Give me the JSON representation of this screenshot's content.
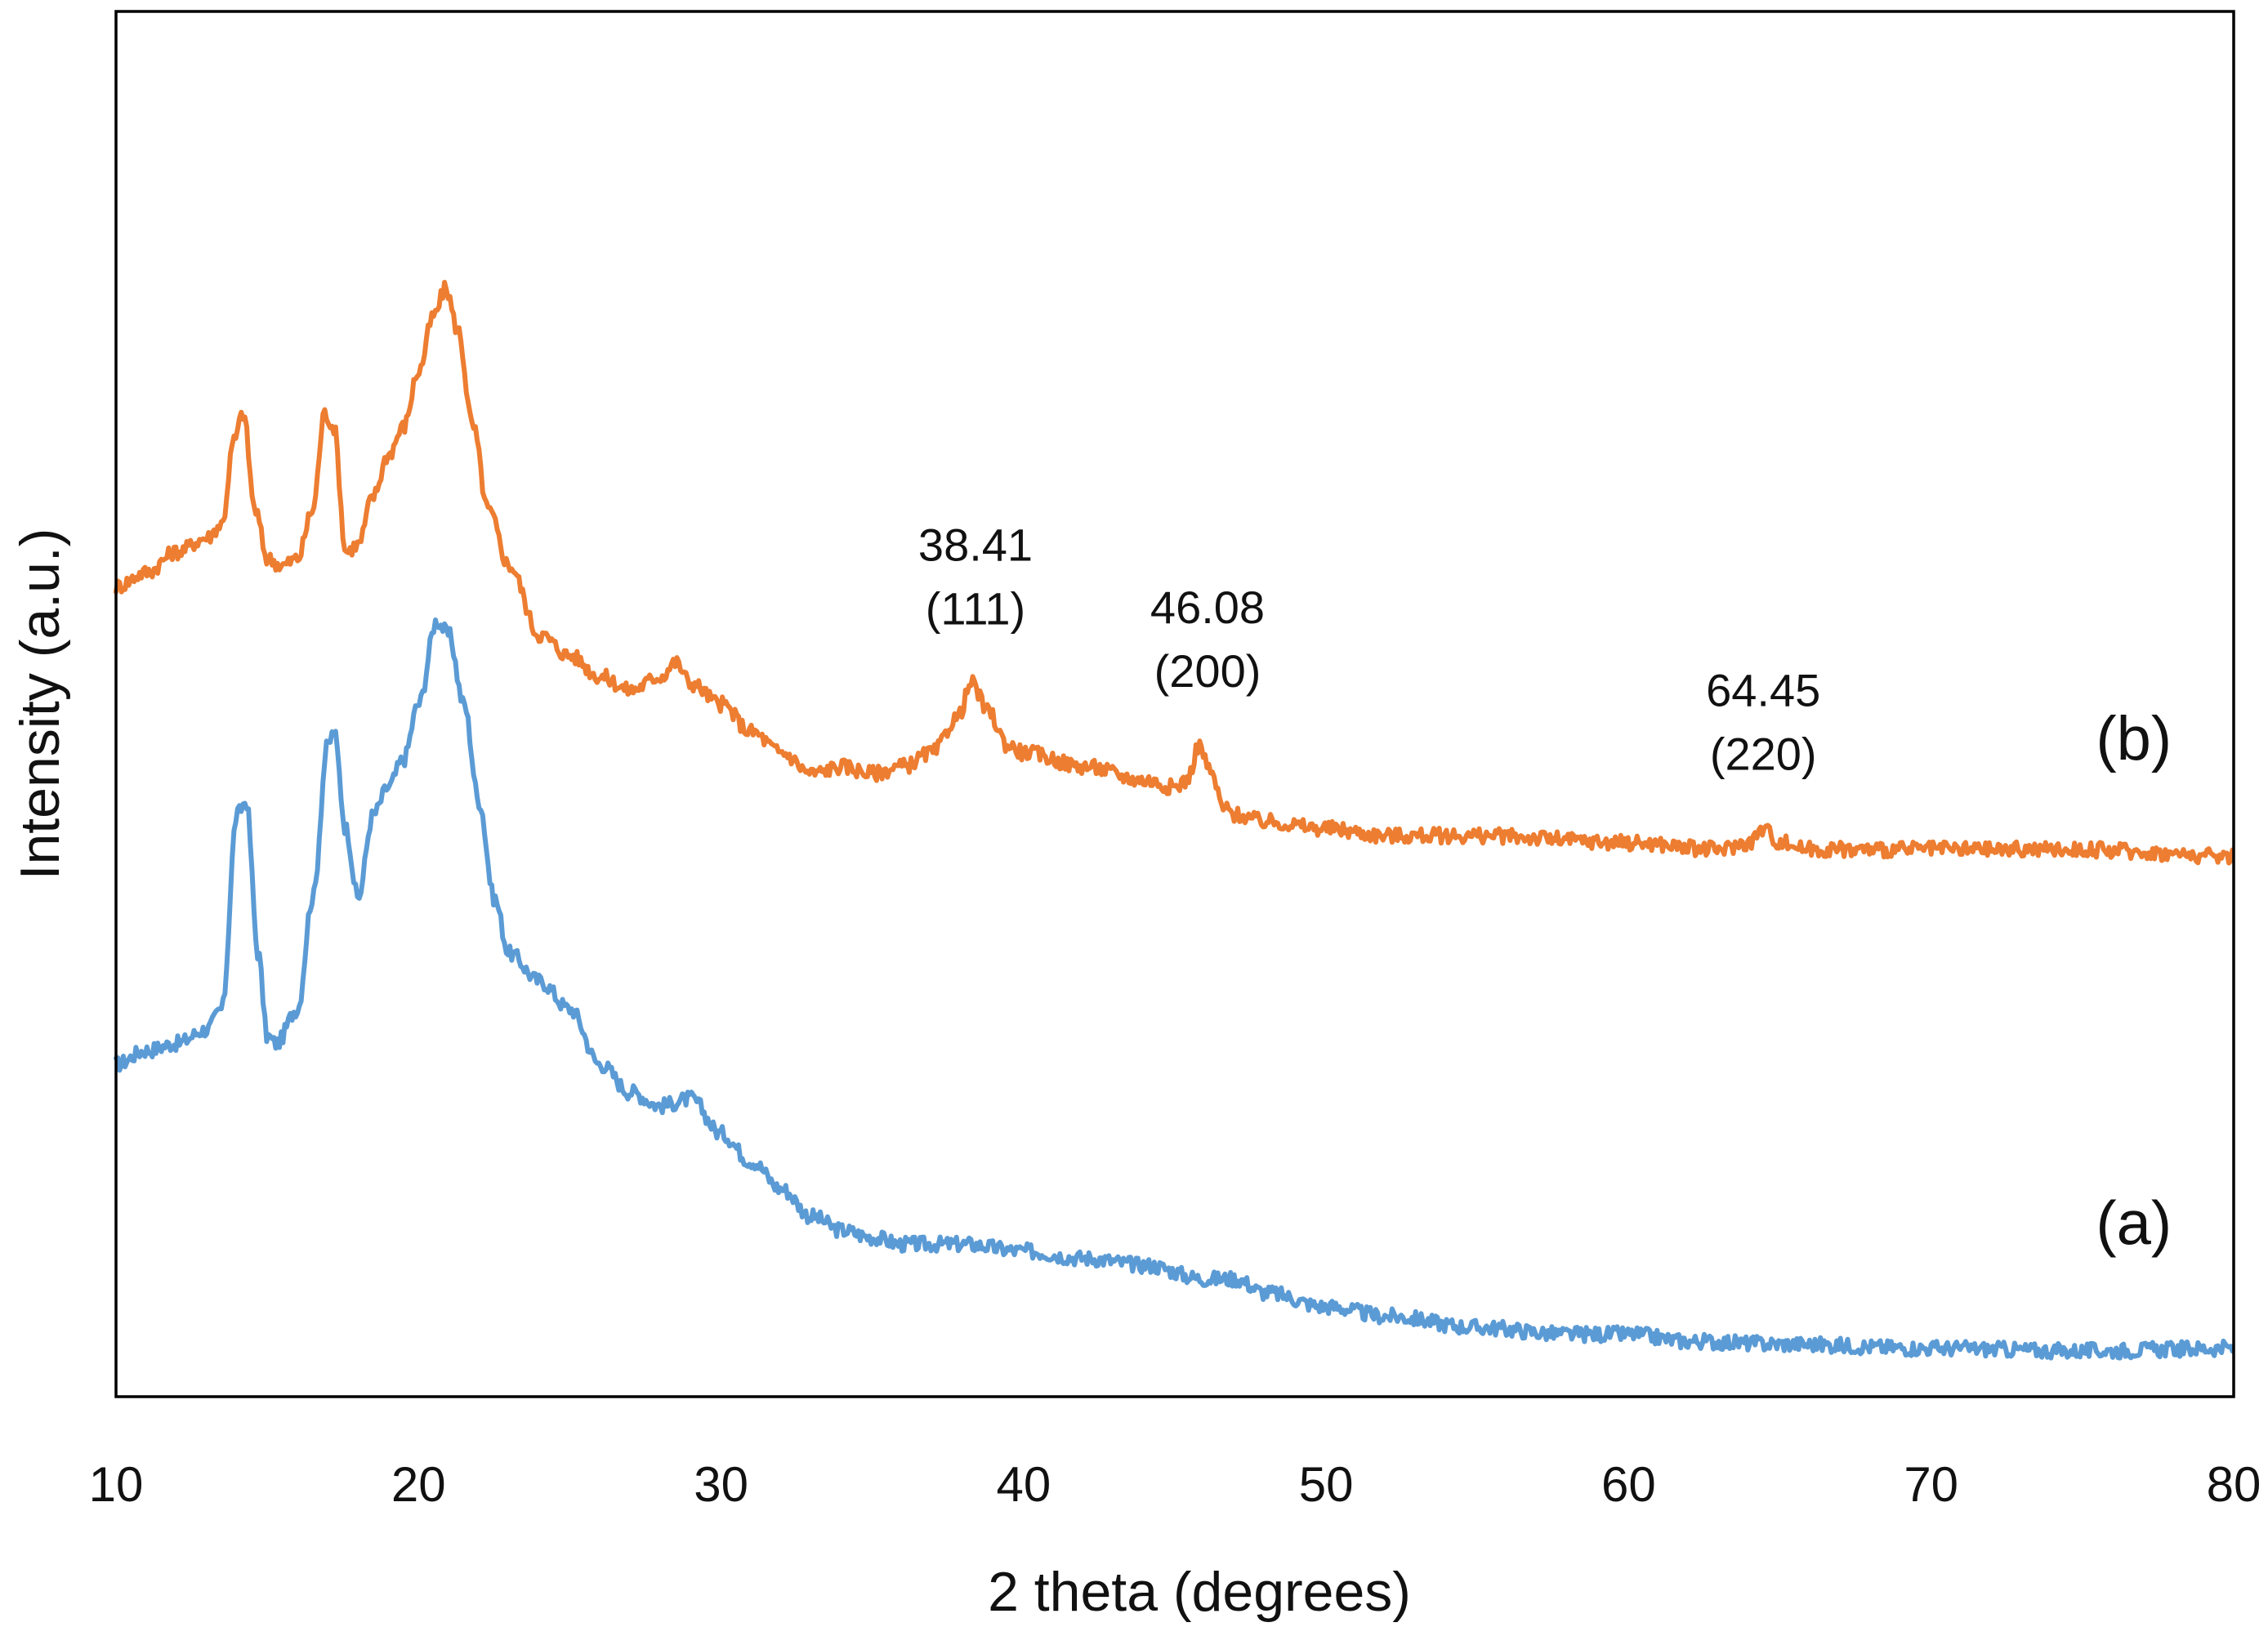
{
  "chart_data": {
    "type": "line",
    "title": "",
    "xlabel": "2 theta (degrees)",
    "ylabel": "Intensity (a.u.)",
    "xlim": [
      10,
      80
    ],
    "ylim": [
      0,
      100
    ],
    "y_axis_ticks_shown": false,
    "grid": false,
    "legend": "none",
    "x_ticks": [
      10,
      20,
      30,
      40,
      50,
      60,
      70,
      80
    ],
    "x_tick_labels": [
      "10",
      "20",
      "30",
      "40",
      "50",
      "60",
      "70",
      "80"
    ],
    "series": [
      {
        "name": "(a)",
        "label": "(a)",
        "color": "#5b9bd5",
        "x": [
          10,
          11,
          12,
          13,
          13.5,
          14.0,
          14.3,
          14.7,
          15.0,
          15.3,
          16.0,
          16.5,
          17.0,
          17.2,
          17.6,
          18.0,
          18.5,
          19.0,
          19.5,
          20.0,
          20.6,
          21.0,
          21.5,
          22.0,
          22.5,
          23.0,
          24.0,
          25.0,
          26.0,
          27.0,
          28.0,
          29.0,
          30.0,
          31.0,
          32.0,
          33.0,
          34.0,
          35.0,
          36.0,
          37.0,
          38.0,
          40.0,
          42.0,
          44.0,
          46.0,
          47.0,
          48.0,
          50.0,
          52.0,
          55.0,
          58.0,
          60.0,
          62.0,
          65.0,
          70.0,
          75.0,
          80.0
        ],
        "y": [
          24.0,
          25.0,
          25.5,
          26.5,
          28.0,
          42.0,
          43.0,
          32.0,
          26.0,
          25.5,
          28.0,
          36.0,
          47.0,
          48.0,
          41.0,
          36.0,
          42.0,
          44.0,
          46.0,
          50.0,
          56.0,
          55.0,
          50.0,
          43.0,
          36.0,
          32.0,
          30.0,
          28.0,
          24.0,
          22.0,
          21.0,
          21.5,
          19.0,
          17.0,
          15.0,
          13.0,
          12.0,
          11.5,
          11.0,
          11.0,
          11.0,
          10.5,
          10.0,
          9.5,
          8.5,
          8.5,
          7.5,
          6.5,
          5.8,
          5.0,
          4.5,
          4.5,
          4.0,
          3.8,
          3.5,
          3.3,
          3.5
        ]
      },
      {
        "name": "(b)",
        "label": "(b)",
        "color": "#ed7d31",
        "x": [
          10,
          11,
          12,
          13,
          13.5,
          13.9,
          14.2,
          14.6,
          15.0,
          15.5,
          16.0,
          16.5,
          16.9,
          17.2,
          17.6,
          18.0,
          18.5,
          19.0,
          19.5,
          20.0,
          20.5,
          20.9,
          21.3,
          21.8,
          22.3,
          23.0,
          24.0,
          25.0,
          26.0,
          27.0,
          28.0,
          28.5,
          29.0,
          30.0,
          31.0,
          32.0,
          33.0,
          34.0,
          35.0,
          36.0,
          37.0,
          37.8,
          38.3,
          38.8,
          39.5,
          40.0,
          42.0,
          44.0,
          45.0,
          45.4,
          45.8,
          46.2,
          46.6,
          47.0,
          48.0,
          50.0,
          52.0,
          55.0,
          60.0,
          63.0,
          64.0,
          64.45,
          65.0,
          66.0,
          70.0,
          75.0,
          80.0
        ],
        "y": [
          58.5,
          59.5,
          61.0,
          62.0,
          63.0,
          69.0,
          71.0,
          64.0,
          60.5,
          60.0,
          60.5,
          64.0,
          71.0,
          70.0,
          61.0,
          61.5,
          65.0,
          68.0,
          70.0,
          74.0,
          78.0,
          80.0,
          77.0,
          70.0,
          64.0,
          60.0,
          55.0,
          53.5,
          52.0,
          51.0,
          52.0,
          53.0,
          51.5,
          50.0,
          48.0,
          46.5,
          45.0,
          45.5,
          45.0,
          45.5,
          46.5,
          49.0,
          51.5,
          49.5,
          47.0,
          46.5,
          45.5,
          44.5,
          44.0,
          44.5,
          47.0,
          45.0,
          42.5,
          42.0,
          41.5,
          41.0,
          40.5,
          40.5,
          40.0,
          39.5,
          40.0,
          41.0,
          40.0,
          39.5,
          39.5,
          39.5,
          39.0
        ]
      }
    ],
    "annotations": [
      {
        "x": 38.41,
        "y": 51.5,
        "line1": "38.41",
        "line2": "(111)"
      },
      {
        "x": 46.08,
        "y": 47.0,
        "line1": "46.08",
        "line2": "(200)"
      },
      {
        "x": 64.45,
        "y": 41.0,
        "line1": "64.45",
        "line2": "(220)"
      }
    ],
    "series_tags": [
      {
        "series": "(b)",
        "text": "(b)",
        "x": 76.7,
        "y": 46
      },
      {
        "series": "(a)",
        "text": "(a)",
        "x": 76.7,
        "y": 11
      }
    ]
  }
}
